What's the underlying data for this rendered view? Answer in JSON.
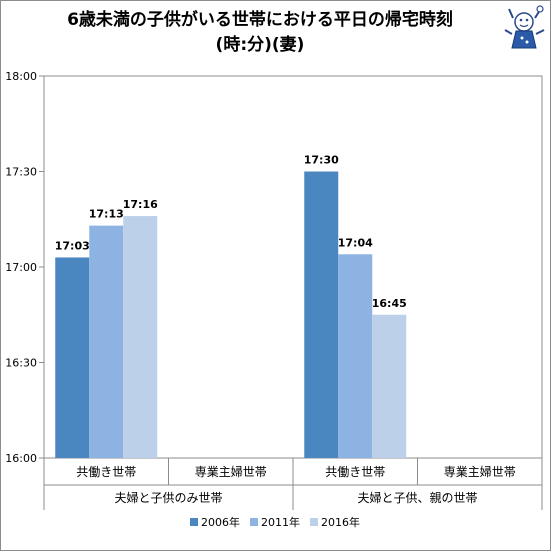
{
  "title": {
    "line1": "6歳未満の子供がいる世帯における平日の帰宅時刻",
    "line2": "(時:分)(妻)"
  },
  "chart_data": {
    "type": "bar",
    "ylim": [
      960,
      1080
    ],
    "yticks": [
      960,
      990,
      1020,
      1050,
      1080
    ],
    "ytick_labels": [
      "16:00",
      "16:30",
      "17:00",
      "17:30",
      "18:00"
    ],
    "groups": [
      {
        "label": "夫婦と子供のみ世帯",
        "categories": [
          "共働き世帯",
          "専業主婦世帯"
        ]
      },
      {
        "label": "夫婦と子供、親の世帯",
        "categories": [
          "共働き世帯",
          "専業主婦世帯"
        ]
      }
    ],
    "series": [
      {
        "name": "2006年",
        "color": "#4a86c0",
        "values": [
          1023,
          null,
          1050,
          null
        ],
        "labels": [
          "17:03",
          "",
          "17:30",
          ""
        ]
      },
      {
        "name": "2011年",
        "color": "#8db3e2",
        "values": [
          1033,
          null,
          1024,
          null
        ],
        "labels": [
          "17:13",
          "",
          "17:04",
          ""
        ]
      },
      {
        "name": "2016年",
        "color": "#bdd0ea",
        "values": [
          1036,
          null,
          1005,
          null
        ],
        "labels": [
          "17:16",
          "",
          "16:45",
          ""
        ]
      }
    ],
    "grid": false,
    "legend": "bottom"
  }
}
